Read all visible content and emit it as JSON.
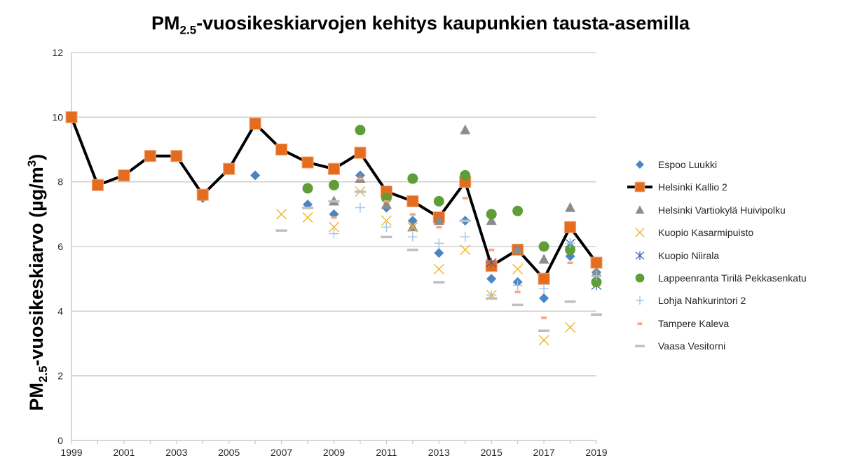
{
  "chart_data": {
    "type": "line",
    "title_parts": {
      "prefix": "PM",
      "sub": "2.5",
      "suffix": "-vuosikeskiarvojen kehitys kaupunkien tausta-asemilla"
    },
    "ylabel_parts": {
      "prefix": "PM",
      "sub": "2.5",
      "mid": "-vuosikeskiarvo (µg/m",
      "sup": "3",
      "suffix": ")"
    },
    "xlabel": "",
    "xlim": [
      1999,
      2019
    ],
    "ylim": [
      0,
      12
    ],
    "x_ticks": [
      1999,
      2001,
      2003,
      2005,
      2007,
      2009,
      2011,
      2013,
      2015,
      2017,
      2019
    ],
    "y_ticks": [
      0,
      2,
      4,
      6,
      8,
      10,
      12
    ],
    "grid": "horizontal",
    "legend_position": "right",
    "series": [
      {
        "name": "Espoo Luukki",
        "marker": "diamond",
        "color": "#4a86c5",
        "line": false,
        "points": [
          [
            2004,
            7.5
          ],
          [
            2006,
            8.2
          ],
          [
            2008,
            7.3
          ],
          [
            2009,
            7.0
          ],
          [
            2010,
            8.2
          ],
          [
            2011,
            7.2
          ],
          [
            2012,
            6.8
          ],
          [
            2013,
            5.8
          ],
          [
            2014,
            6.8
          ],
          [
            2015,
            5.0
          ],
          [
            2016,
            4.9
          ],
          [
            2017,
            4.4
          ],
          [
            2018,
            5.7
          ],
          [
            2019,
            5.2
          ]
        ]
      },
      {
        "name": "Helsinki Kallio 2",
        "marker": "square",
        "color": "#e36c1f",
        "line": true,
        "line_color": "#000000",
        "points": [
          [
            1999,
            10.0
          ],
          [
            2000,
            7.9
          ],
          [
            2001,
            8.2
          ],
          [
            2002,
            8.8
          ],
          [
            2003,
            8.8
          ],
          [
            2004,
            7.6
          ],
          [
            2005,
            8.4
          ],
          [
            2006,
            9.8
          ],
          [
            2007,
            9.0
          ],
          [
            2008,
            8.6
          ],
          [
            2009,
            8.4
          ],
          [
            2010,
            8.9
          ],
          [
            2011,
            7.7
          ],
          [
            2012,
            7.4
          ],
          [
            2013,
            6.9
          ],
          [
            2014,
            8.0
          ],
          [
            2015,
            5.4
          ],
          [
            2016,
            5.9
          ],
          [
            2017,
            5.0
          ],
          [
            2018,
            6.6
          ],
          [
            2019,
            5.5
          ]
        ]
      },
      {
        "name": "Helsinki Vartiokylä Huivipolku",
        "marker": "triangle",
        "color": "#8c8c8c",
        "line": false,
        "points": [
          [
            2009,
            7.4
          ],
          [
            2010,
            8.1
          ],
          [
            2011,
            7.3
          ],
          [
            2012,
            6.6
          ],
          [
            2013,
            6.8
          ],
          [
            2014,
            9.6
          ],
          [
            2015,
            6.8
          ],
          [
            2016,
            5.9
          ],
          [
            2017,
            5.6
          ],
          [
            2018,
            7.2
          ],
          [
            2019,
            5.2
          ]
        ]
      },
      {
        "name": "Kuopio Kasarmipuisto",
        "marker": "x",
        "color": "#f0b323",
        "line": false,
        "points": [
          [
            2007,
            7.0
          ],
          [
            2008,
            6.9
          ],
          [
            2009,
            6.6
          ],
          [
            2010,
            7.7
          ],
          [
            2011,
            6.8
          ],
          [
            2012,
            6.6
          ],
          [
            2013,
            5.3
          ],
          [
            2014,
            5.9
          ],
          [
            2015,
            4.5
          ],
          [
            2016,
            5.3
          ],
          [
            2017,
            3.1
          ],
          [
            2018,
            3.5
          ]
        ]
      },
      {
        "name": "Kuopio Niirala",
        "marker": "asterisk",
        "color": "#3b64b0",
        "line": false,
        "points": [
          [
            2015,
            5.5
          ],
          [
            2018,
            6.1
          ],
          [
            2019,
            4.8
          ]
        ]
      },
      {
        "name": "Lappeenranta Tirilä Pekkasenkatu",
        "marker": "circle",
        "color": "#5f9e37",
        "line": false,
        "points": [
          [
            2008,
            7.8
          ],
          [
            2009,
            7.9
          ],
          [
            2010,
            9.6
          ],
          [
            2011,
            7.5
          ],
          [
            2012,
            8.1
          ],
          [
            2013,
            7.4
          ],
          [
            2014,
            8.2
          ],
          [
            2015,
            7.0
          ],
          [
            2016,
            7.1
          ],
          [
            2017,
            6.0
          ],
          [
            2018,
            5.9
          ],
          [
            2019,
            4.9
          ]
        ]
      },
      {
        "name": "Lohja Nahkurintori 2",
        "marker": "plus",
        "color": "#9dc3e6",
        "line": false,
        "points": [
          [
            2009,
            6.4
          ],
          [
            2010,
            7.2
          ],
          [
            2011,
            6.6
          ],
          [
            2012,
            6.3
          ],
          [
            2013,
            6.1
          ],
          [
            2014,
            6.3
          ],
          [
            2015,
            4.5
          ],
          [
            2016,
            4.8
          ],
          [
            2017,
            4.7
          ],
          [
            2018,
            6.1
          ],
          [
            2019,
            5.1
          ]
        ]
      },
      {
        "name": "Tampere Kaleva",
        "marker": "dash-short",
        "color": "#f4a582",
        "line": false,
        "points": [
          [
            2009,
            6.9
          ],
          [
            2010,
            8.1
          ],
          [
            2011,
            7.4
          ],
          [
            2012,
            7.0
          ],
          [
            2013,
            6.6
          ],
          [
            2014,
            7.5
          ],
          [
            2015,
            5.9
          ],
          [
            2016,
            4.6
          ],
          [
            2017,
            3.8
          ],
          [
            2018,
            5.5
          ]
        ]
      },
      {
        "name": "Vaasa Vesitorni",
        "marker": "dash",
        "color": "#bfbfbf",
        "line": false,
        "points": [
          [
            2007,
            6.5
          ],
          [
            2008,
            7.2
          ],
          [
            2009,
            7.4
          ],
          [
            2010,
            7.7
          ],
          [
            2011,
            6.3
          ],
          [
            2012,
            5.9
          ],
          [
            2013,
            4.9
          ],
          [
            2014,
            6.8
          ],
          [
            2015,
            4.4
          ],
          [
            2016,
            4.2
          ],
          [
            2017,
            3.4
          ],
          [
            2018,
            4.3
          ],
          [
            2019,
            3.9
          ]
        ]
      }
    ]
  }
}
